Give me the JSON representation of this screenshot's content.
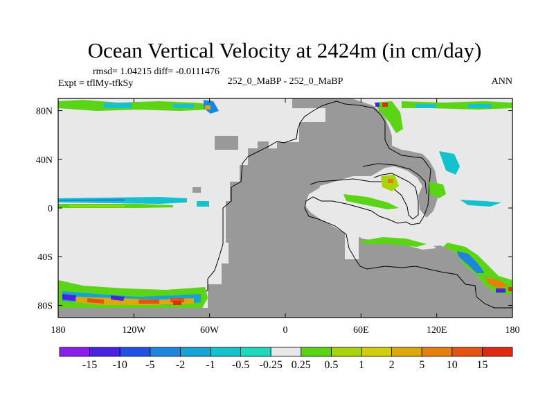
{
  "chart_data": {
    "type": "heatmap",
    "title": "Ocean Vertical Velocity at 2424m (in cm/day)",
    "stats_text": "rmsd= 1.04215 diff= -0.0111476",
    "left_label": "Expt = tflMy-tfkSy",
    "center_label": "252_0_MaBP - 252_0_MaBP",
    "right_label": "ANN",
    "x_ticks": [
      "180",
      "120W",
      "60W",
      "0",
      "60E",
      "120E",
      "180"
    ],
    "x_tick_lon": [
      -180,
      -120,
      -60,
      0,
      60,
      120,
      180
    ],
    "y_ticks": [
      "80N",
      "40N",
      "0",
      "40S",
      "80S"
    ],
    "y_tick_lat": [
      80,
      40,
      0,
      -40,
      -80
    ],
    "xlim": [
      -180,
      180
    ],
    "ylim": [
      -90,
      90
    ],
    "colorbar": {
      "labels": [
        "-15",
        "-10",
        "-5",
        "-2",
        "-1",
        "-0.5",
        "-0.25",
        "0.25",
        "0.5",
        "1",
        "2",
        "5",
        "10",
        "15"
      ],
      "colors": [
        "#8b1ee8",
        "#4a23e0",
        "#2050e6",
        "#1b86df",
        "#14a3d6",
        "#14c2cd",
        "#1ed9bd",
        "#e8e8e8",
        "#5ad414",
        "#a8d40c",
        "#d2cd0f",
        "#dca80c",
        "#e5800f",
        "#e55310",
        "#dd2a10"
      ]
    },
    "fill_colors": {
      "land": "#999999",
      "no_signal": "#e8e8e8"
    }
  }
}
